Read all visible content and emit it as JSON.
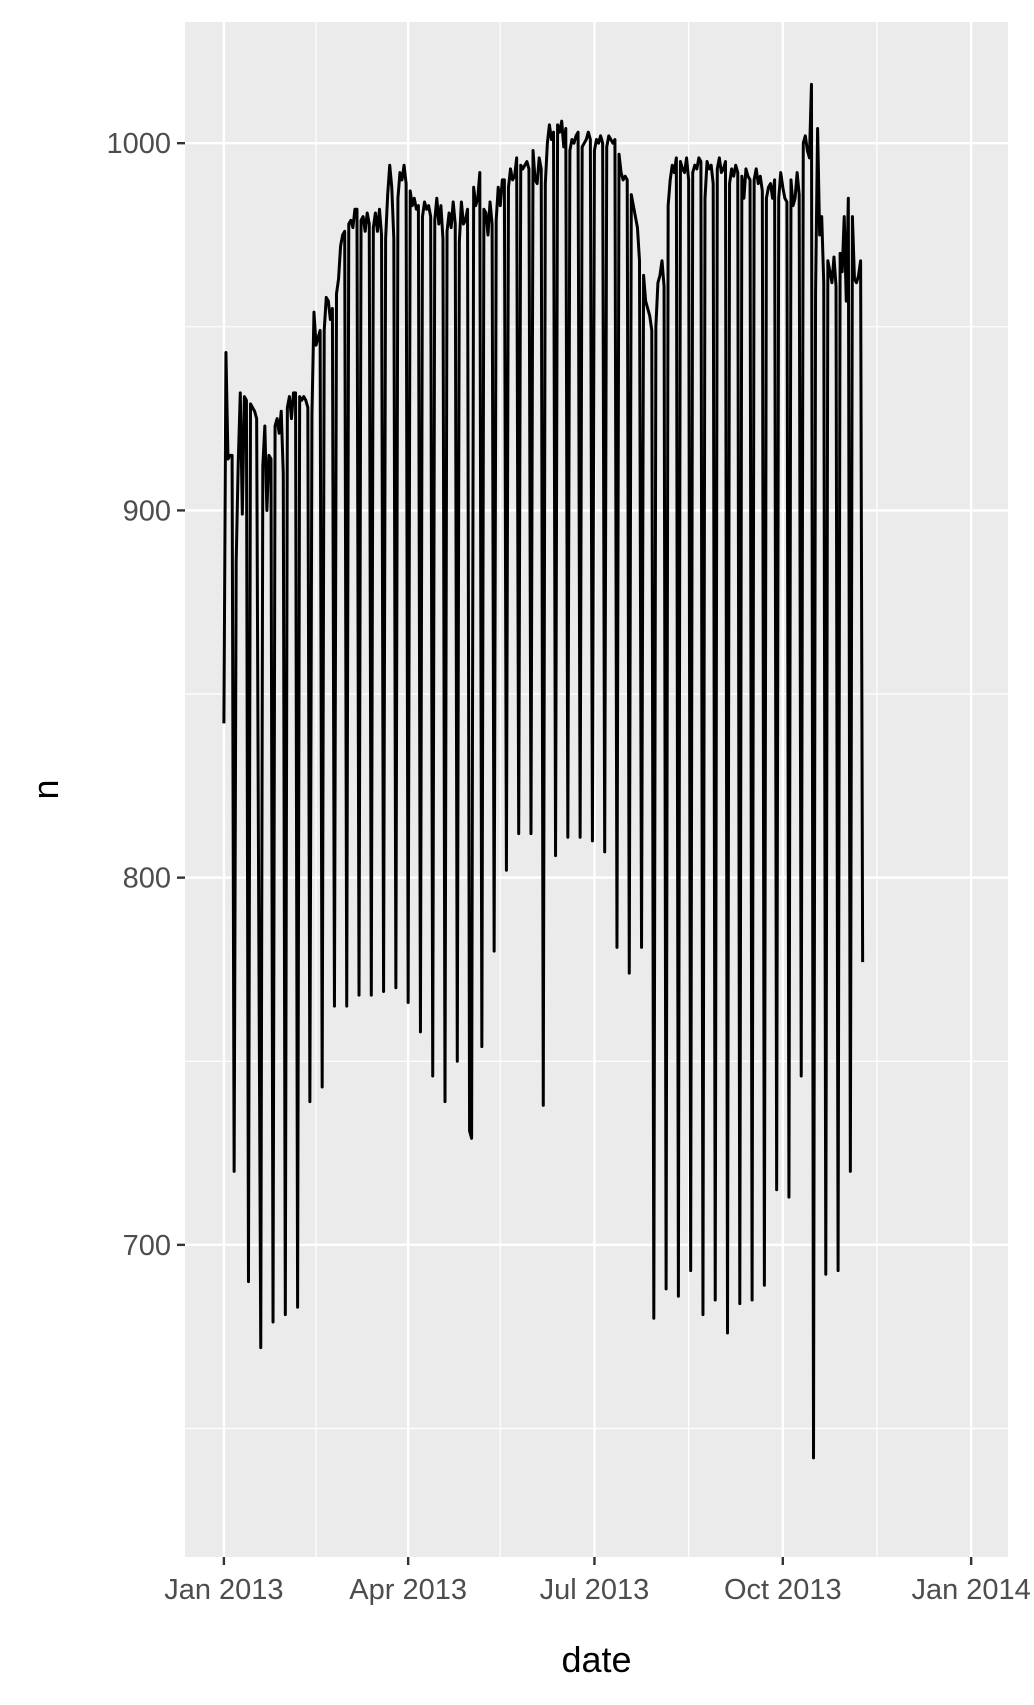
{
  "chart_data": {
    "type": "line",
    "title": "",
    "xlabel": "date",
    "ylabel": "n",
    "x_range": [
      "2012-12-13",
      "2014-01-19"
    ],
    "ylim": [
      615,
      1033
    ],
    "x_ticks": [
      {
        "date": "2013-01-01",
        "label": "Jan 2013"
      },
      {
        "date": "2013-04-01",
        "label": "Apr 2013"
      },
      {
        "date": "2013-07-01",
        "label": "Jul 2013"
      },
      {
        "date": "2013-10-01",
        "label": "Oct 2013"
      },
      {
        "date": "2014-01-01",
        "label": "Jan 2014"
      }
    ],
    "x_minor_ticks": [
      "2013-02-15",
      "2013-05-16",
      "2013-08-16",
      "2013-11-16"
    ],
    "y_ticks": [
      700,
      800,
      900,
      1000
    ],
    "y_minor_ticks": [
      650,
      750,
      850,
      950
    ],
    "grid": true,
    "legend": "none",
    "colors": {
      "panel": "#ebebeb",
      "grid": "#ffffff",
      "line": "#000000"
    },
    "start_date": "2013-01-01",
    "values": [
      842,
      943,
      914,
      915,
      915,
      720,
      886,
      913,
      932,
      899,
      931,
      930,
      690,
      929,
      928,
      927,
      925,
      792,
      672,
      912,
      923,
      900,
      915,
      914,
      679,
      923,
      925,
      921,
      927,
      910,
      681,
      928,
      931,
      925,
      932,
      932,
      683,
      931,
      930,
      931,
      930,
      928,
      739,
      926,
      954,
      945,
      947,
      949,
      743,
      949,
      958,
      957,
      952,
      955,
      765,
      959,
      963,
      972,
      975,
      976,
      765,
      978,
      979,
      977,
      982,
      982,
      768,
      979,
      980,
      976,
      981,
      978,
      768,
      977,
      981,
      976,
      982,
      975,
      769,
      974,
      986,
      994,
      988,
      974,
      770,
      985,
      992,
      990,
      994,
      989,
      766,
      987,
      983,
      985,
      982,
      983,
      758,
      980,
      984,
      982,
      983,
      980,
      746,
      979,
      985,
      978,
      983,
      974,
      739,
      976,
      981,
      977,
      984,
      978,
      750,
      973,
      984,
      978,
      979,
      982,
      731,
      729,
      988,
      983,
      985,
      992,
      754,
      982,
      981,
      975,
      984,
      978,
      780,
      979,
      988,
      983,
      990,
      990,
      802,
      988,
      993,
      990,
      991,
      996,
      812,
      994,
      993,
      994,
      995,
      993,
      812,
      998,
      990,
      989,
      996,
      993,
      738,
      989,
      1000,
      1005,
      1001,
      1003,
      806,
      1005,
      1003,
      1006,
      999,
      1004,
      811,
      998,
      1001,
      1000,
      1002,
      1003,
      811,
      999,
      1000,
      1001,
      1003,
      1001,
      810,
      998,
      1001,
      1000,
      1002,
      1000,
      807,
      999,
      1002,
      1001,
      1000,
      1001,
      781,
      997,
      992,
      990,
      991,
      990,
      774,
      986,
      983,
      980,
      977,
      968,
      781,
      964,
      957,
      955,
      953,
      949,
      680,
      950,
      962,
      964,
      968,
      961,
      688,
      983,
      990,
      994,
      992,
      996,
      686,
      995,
      993,
      992,
      996,
      990,
      693,
      992,
      994,
      993,
      996,
      995,
      681,
      985,
      995,
      993,
      994,
      989,
      685,
      993,
      996,
      992,
      993,
      995,
      676,
      989,
      993,
      991,
      994,
      992,
      684,
      991,
      985,
      993,
      991,
      990,
      685,
      990,
      993,
      989,
      991,
      987,
      689,
      985,
      988,
      989,
      985,
      990,
      715,
      985,
      992,
      988,
      985,
      984,
      713,
      990,
      983,
      985,
      992,
      986,
      746,
      1000,
      1002,
      998,
      996,
      1016,
      642,
      959,
      1004,
      975,
      980,
      962,
      692,
      968,
      965,
      962,
      969,
      961,
      693,
      970,
      965,
      980,
      957,
      985,
      720,
      980,
      963,
      962,
      964,
      968,
      777
    ]
  }
}
